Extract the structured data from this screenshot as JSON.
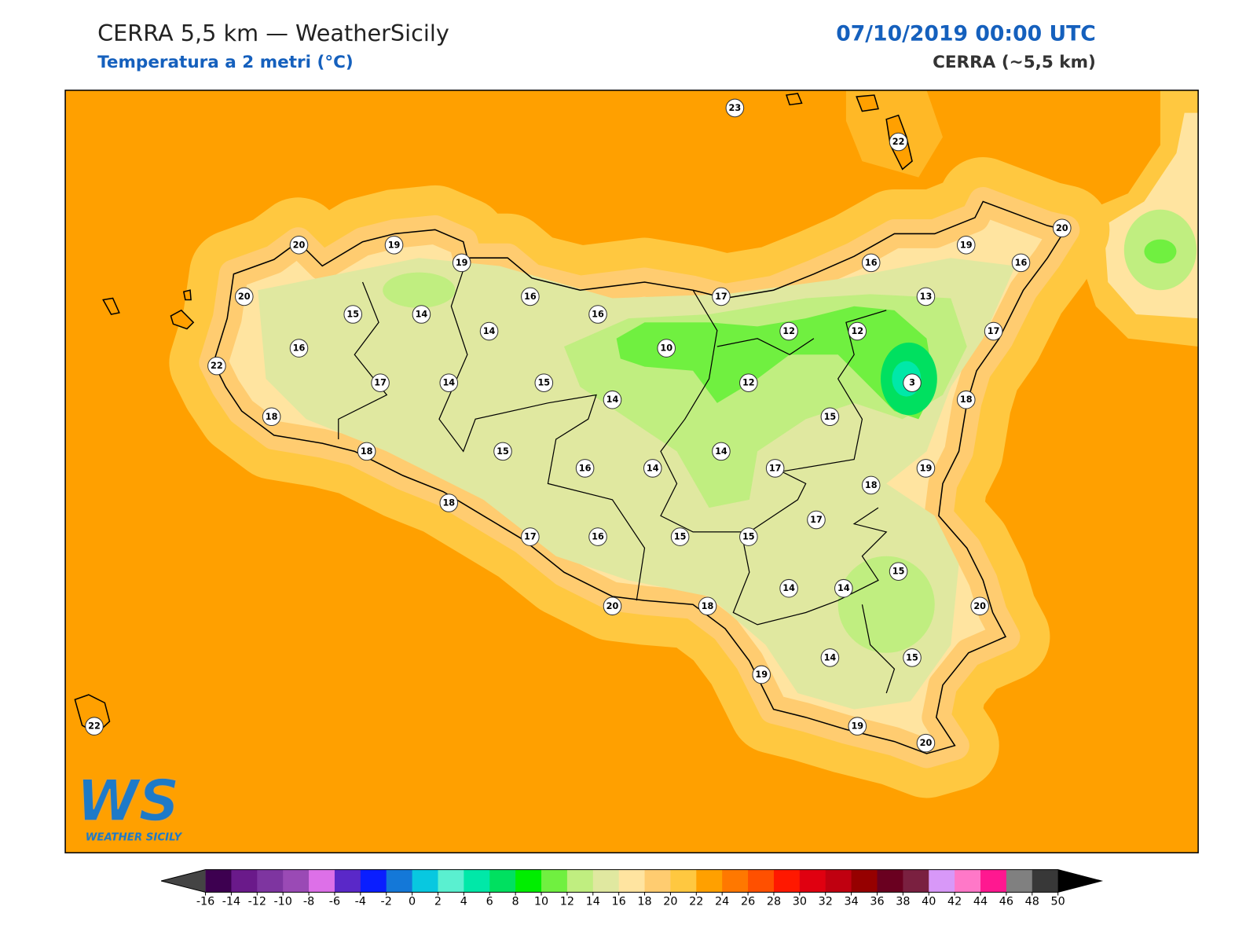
{
  "header": {
    "title": "CERRA 5,5 km — WeatherSicily",
    "subtitle": "Temperatura a 2 metri (°C)",
    "datetime": "07/10/2019 00:00 UTC",
    "model": "CERRA (~5,5 km)"
  },
  "stations": [
    23,
    22,
    20,
    19,
    19,
    20,
    15,
    14,
    16,
    16,
    14,
    16,
    22,
    17,
    14,
    15,
    10,
    17,
    12,
    12,
    16,
    13,
    19,
    20,
    16,
    17,
    3,
    18,
    12,
    14,
    15,
    18,
    18,
    15,
    16,
    14,
    14,
    17,
    19,
    18,
    18,
    17,
    17,
    16,
    15,
    15,
    15,
    14,
    14,
    20,
    20,
    18,
    19,
    14,
    15,
    19,
    20,
    22
  ],
  "colorbar": {
    "ticks": [
      -16,
      -14,
      -12,
      -10,
      -8,
      -6,
      -4,
      -2,
      0,
      2,
      4,
      6,
      8,
      10,
      12,
      14,
      16,
      18,
      20,
      22,
      24,
      26,
      28,
      30,
      32,
      34,
      36,
      38,
      40,
      42,
      44,
      46,
      48,
      50
    ],
    "colors": [
      "#3d0050",
      "#6a1a8a",
      "#7e35a0",
      "#9a4ab5",
      "#dd70e8",
      "#5a28c8",
      "#0a1eff",
      "#1478d8",
      "#08c8e0",
      "#5af0d0",
      "#00e8a8",
      "#00e060",
      "#00ee00",
      "#70f040",
      "#c0ee80",
      "#e0e8a0",
      "#ffe4a0",
      "#ffcc70",
      "#ffc840",
      "#ffa000",
      "#ff7800",
      "#ff5000",
      "#ff1800",
      "#e00010",
      "#c00010",
      "#960000",
      "#6a0020",
      "#7a2040",
      "#d898f8",
      "#ff78c8",
      "#ff1890",
      "#808080",
      "#383838"
    ],
    "under_color": "#444444",
    "over_color": "#000000"
  },
  "logo": {
    "mark": "WS",
    "text": "WEATHER SICILY"
  }
}
